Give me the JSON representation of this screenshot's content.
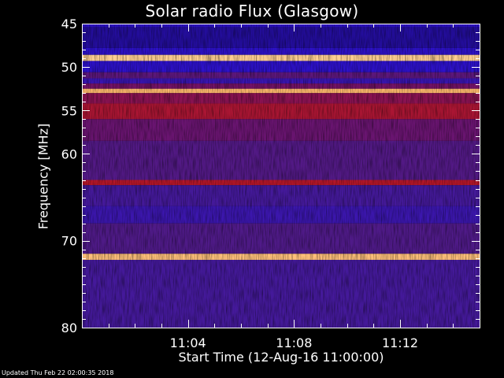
{
  "chart_data": {
    "type": "heatmap",
    "title": "Solar radio Flux (Glasgow)",
    "xlabel": "Start Time (12-Aug-16 11:00:00)",
    "ylabel": "Frequency [MHz]",
    "footer": "Updated Thu Feb 22 02:00:35 2018",
    "x_unit": "minutes after 11:00",
    "xlim": [
      0,
      15
    ],
    "ylim": [
      45,
      80
    ],
    "x_ticks": [
      {
        "value": 4,
        "label": "11:04"
      },
      {
        "value": 8,
        "label": "11:08"
      },
      {
        "value": 12,
        "label": "11:12"
      }
    ],
    "y_ticks": [
      {
        "value": 45,
        "label": "45"
      },
      {
        "value": 50,
        "label": "50"
      },
      {
        "value": 55,
        "label": "55"
      },
      {
        "value": 60,
        "label": "60"
      },
      {
        "value": 70,
        "label": "70"
      },
      {
        "value": 80,
        "label": "80"
      }
    ],
    "colormap": [
      "#000000",
      "#1a0a5c",
      "#2a10d0",
      "#4b1b8c",
      "#7a1060",
      "#c81818",
      "#ff8a20",
      "#fff4d0"
    ],
    "frequency_bands": [
      {
        "from": 45.0,
        "to": 45.4,
        "level": 0.3
      },
      {
        "from": 45.4,
        "to": 47.8,
        "level": 0.22
      },
      {
        "from": 47.8,
        "to": 48.6,
        "level": 0.3
      },
      {
        "from": 48.6,
        "to": 49.3,
        "level": 0.95
      },
      {
        "from": 49.3,
        "to": 50.6,
        "level": 0.3
      },
      {
        "from": 50.6,
        "to": 51.3,
        "level": 0.48
      },
      {
        "from": 51.3,
        "to": 51.9,
        "level": 0.35
      },
      {
        "from": 51.9,
        "to": 52.5,
        "level": 0.55
      },
      {
        "from": 52.5,
        "to": 53.0,
        "level": 0.92
      },
      {
        "from": 53.0,
        "to": 54.2,
        "level": 0.6
      },
      {
        "from": 54.2,
        "to": 56.0,
        "level": 0.66
      },
      {
        "from": 56.0,
        "to": 58.5,
        "level": 0.52
      },
      {
        "from": 58.5,
        "to": 63.0,
        "level": 0.45
      },
      {
        "from": 63.0,
        "to": 63.6,
        "level": 0.68
      },
      {
        "from": 63.6,
        "to": 66.0,
        "level": 0.4
      },
      {
        "from": 66.0,
        "to": 68.0,
        "level": 0.36
      },
      {
        "from": 68.0,
        "to": 71.5,
        "level": 0.44
      },
      {
        "from": 71.5,
        "to": 72.2,
        "level": 0.93
      },
      {
        "from": 72.2,
        "to": 80.0,
        "level": 0.4
      }
    ]
  }
}
